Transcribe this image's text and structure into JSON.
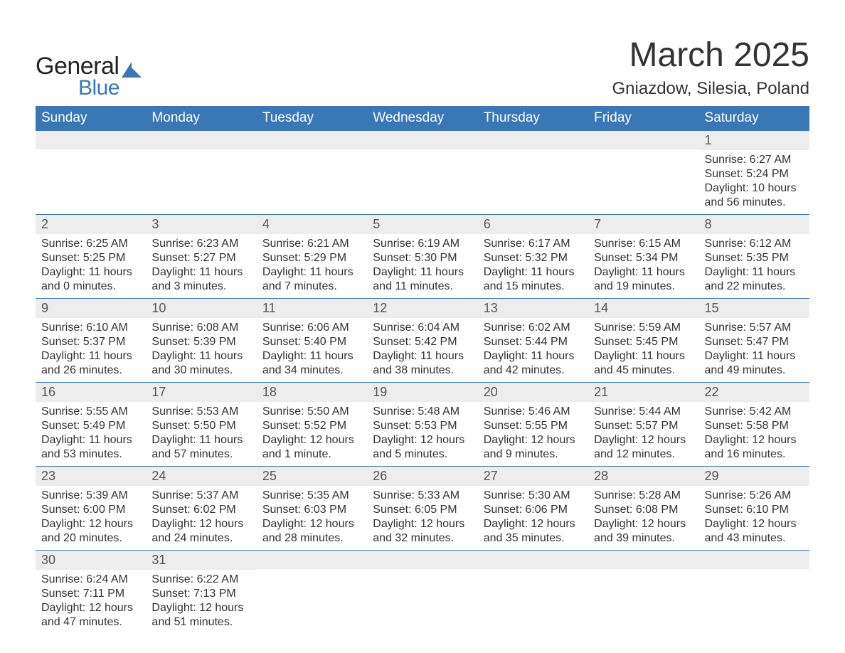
{
  "brand": {
    "word1": "General",
    "word2": "Blue",
    "color_text": "#222222",
    "color_blue": "#3a77b7",
    "logo_icon_name": "triangle-logo-icon"
  },
  "title": {
    "month_year": "March 2025",
    "location": "Gniazdow, Silesia, Poland",
    "title_fontsize": 48,
    "subtitle_fontsize": 24,
    "color": "#333333"
  },
  "calendar": {
    "header_bg": "#3a77b7",
    "header_fg": "#ffffff",
    "daynum_bg": "#ededed",
    "daynum_fg": "#555555",
    "body_fg": "#333333",
    "row_border": "#3a77b7",
    "background": "#ffffff",
    "header_fontsize": 19,
    "daynum_fontsize": 18,
    "body_fontsize": 16,
    "days": [
      "Sunday",
      "Monday",
      "Tuesday",
      "Wednesday",
      "Thursday",
      "Friday",
      "Saturday"
    ],
    "weeks": [
      [
        null,
        null,
        null,
        null,
        null,
        null,
        {
          "n": "1",
          "sunrise": "Sunrise: 6:27 AM",
          "sunset": "Sunset: 5:24 PM",
          "daylight": "Daylight: 10 hours and 56 minutes."
        }
      ],
      [
        {
          "n": "2",
          "sunrise": "Sunrise: 6:25 AM",
          "sunset": "Sunset: 5:25 PM",
          "daylight": "Daylight: 11 hours and 0 minutes."
        },
        {
          "n": "3",
          "sunrise": "Sunrise: 6:23 AM",
          "sunset": "Sunset: 5:27 PM",
          "daylight": "Daylight: 11 hours and 3 minutes."
        },
        {
          "n": "4",
          "sunrise": "Sunrise: 6:21 AM",
          "sunset": "Sunset: 5:29 PM",
          "daylight": "Daylight: 11 hours and 7 minutes."
        },
        {
          "n": "5",
          "sunrise": "Sunrise: 6:19 AM",
          "sunset": "Sunset: 5:30 PM",
          "daylight": "Daylight: 11 hours and 11 minutes."
        },
        {
          "n": "6",
          "sunrise": "Sunrise: 6:17 AM",
          "sunset": "Sunset: 5:32 PM",
          "daylight": "Daylight: 11 hours and 15 minutes."
        },
        {
          "n": "7",
          "sunrise": "Sunrise: 6:15 AM",
          "sunset": "Sunset: 5:34 PM",
          "daylight": "Daylight: 11 hours and 19 minutes."
        },
        {
          "n": "8",
          "sunrise": "Sunrise: 6:12 AM",
          "sunset": "Sunset: 5:35 PM",
          "daylight": "Daylight: 11 hours and 22 minutes."
        }
      ],
      [
        {
          "n": "9",
          "sunrise": "Sunrise: 6:10 AM",
          "sunset": "Sunset: 5:37 PM",
          "daylight": "Daylight: 11 hours and 26 minutes."
        },
        {
          "n": "10",
          "sunrise": "Sunrise: 6:08 AM",
          "sunset": "Sunset: 5:39 PM",
          "daylight": "Daylight: 11 hours and 30 minutes."
        },
        {
          "n": "11",
          "sunrise": "Sunrise: 6:06 AM",
          "sunset": "Sunset: 5:40 PM",
          "daylight": "Daylight: 11 hours and 34 minutes."
        },
        {
          "n": "12",
          "sunrise": "Sunrise: 6:04 AM",
          "sunset": "Sunset: 5:42 PM",
          "daylight": "Daylight: 11 hours and 38 minutes."
        },
        {
          "n": "13",
          "sunrise": "Sunrise: 6:02 AM",
          "sunset": "Sunset: 5:44 PM",
          "daylight": "Daylight: 11 hours and 42 minutes."
        },
        {
          "n": "14",
          "sunrise": "Sunrise: 5:59 AM",
          "sunset": "Sunset: 5:45 PM",
          "daylight": "Daylight: 11 hours and 45 minutes."
        },
        {
          "n": "15",
          "sunrise": "Sunrise: 5:57 AM",
          "sunset": "Sunset: 5:47 PM",
          "daylight": "Daylight: 11 hours and 49 minutes."
        }
      ],
      [
        {
          "n": "16",
          "sunrise": "Sunrise: 5:55 AM",
          "sunset": "Sunset: 5:49 PM",
          "daylight": "Daylight: 11 hours and 53 minutes."
        },
        {
          "n": "17",
          "sunrise": "Sunrise: 5:53 AM",
          "sunset": "Sunset: 5:50 PM",
          "daylight": "Daylight: 11 hours and 57 minutes."
        },
        {
          "n": "18",
          "sunrise": "Sunrise: 5:50 AM",
          "sunset": "Sunset: 5:52 PM",
          "daylight": "Daylight: 12 hours and 1 minute."
        },
        {
          "n": "19",
          "sunrise": "Sunrise: 5:48 AM",
          "sunset": "Sunset: 5:53 PM",
          "daylight": "Daylight: 12 hours and 5 minutes."
        },
        {
          "n": "20",
          "sunrise": "Sunrise: 5:46 AM",
          "sunset": "Sunset: 5:55 PM",
          "daylight": "Daylight: 12 hours and 9 minutes."
        },
        {
          "n": "21",
          "sunrise": "Sunrise: 5:44 AM",
          "sunset": "Sunset: 5:57 PM",
          "daylight": "Daylight: 12 hours and 12 minutes."
        },
        {
          "n": "22",
          "sunrise": "Sunrise: 5:42 AM",
          "sunset": "Sunset: 5:58 PM",
          "daylight": "Daylight: 12 hours and 16 minutes."
        }
      ],
      [
        {
          "n": "23",
          "sunrise": "Sunrise: 5:39 AM",
          "sunset": "Sunset: 6:00 PM",
          "daylight": "Daylight: 12 hours and 20 minutes."
        },
        {
          "n": "24",
          "sunrise": "Sunrise: 5:37 AM",
          "sunset": "Sunset: 6:02 PM",
          "daylight": "Daylight: 12 hours and 24 minutes."
        },
        {
          "n": "25",
          "sunrise": "Sunrise: 5:35 AM",
          "sunset": "Sunset: 6:03 PM",
          "daylight": "Daylight: 12 hours and 28 minutes."
        },
        {
          "n": "26",
          "sunrise": "Sunrise: 5:33 AM",
          "sunset": "Sunset: 6:05 PM",
          "daylight": "Daylight: 12 hours and 32 minutes."
        },
        {
          "n": "27",
          "sunrise": "Sunrise: 5:30 AM",
          "sunset": "Sunset: 6:06 PM",
          "daylight": "Daylight: 12 hours and 35 minutes."
        },
        {
          "n": "28",
          "sunrise": "Sunrise: 5:28 AM",
          "sunset": "Sunset: 6:08 PM",
          "daylight": "Daylight: 12 hours and 39 minutes."
        },
        {
          "n": "29",
          "sunrise": "Sunrise: 5:26 AM",
          "sunset": "Sunset: 6:10 PM",
          "daylight": "Daylight: 12 hours and 43 minutes."
        }
      ],
      [
        {
          "n": "30",
          "sunrise": "Sunrise: 6:24 AM",
          "sunset": "Sunset: 7:11 PM",
          "daylight": "Daylight: 12 hours and 47 minutes."
        },
        {
          "n": "31",
          "sunrise": "Sunrise: 6:22 AM",
          "sunset": "Sunset: 7:13 PM",
          "daylight": "Daylight: 12 hours and 51 minutes."
        },
        null,
        null,
        null,
        null,
        null
      ]
    ]
  }
}
